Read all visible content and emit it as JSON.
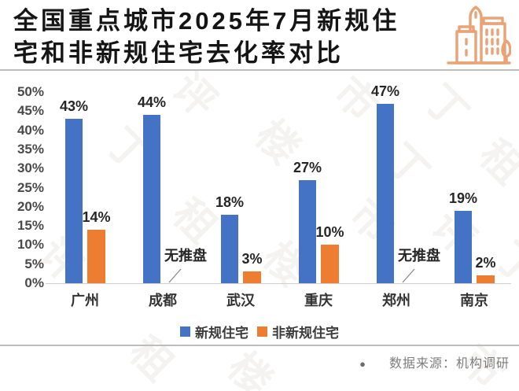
{
  "header": {
    "title_line1": "全国重点城市2025年7月新规住",
    "title_line2": "宅和非新规住宅去化率对比"
  },
  "chart_data": {
    "type": "bar",
    "title": "全国重点城市2025年7月新规住宅和非新规住宅去化率对比",
    "categories": [
      "广州",
      "成都",
      "武汉",
      "重庆",
      "郑州",
      "南京"
    ],
    "series": [
      {
        "name": "新规住宅",
        "color": "#4472C4",
        "values": [
          43,
          44,
          18,
          27,
          47,
          19
        ],
        "labels": [
          "43%",
          "44%",
          "18%",
          "27%",
          "47%",
          "19%"
        ]
      },
      {
        "name": "非新规住宅",
        "color": "#ED7D31",
        "values": [
          14,
          null,
          3,
          10,
          null,
          2
        ],
        "labels": [
          "14%",
          "无推盘",
          "3%",
          "10%",
          "无推盘",
          "2%"
        ]
      }
    ],
    "no_data_annotation": "无推盘",
    "ylim": [
      0,
      50
    ],
    "yticks": [
      {
        "value": 50,
        "label": "50%"
      },
      {
        "value": 45,
        "label": "45%"
      },
      {
        "value": 40,
        "label": "40%"
      },
      {
        "value": 35,
        "label": "35%"
      },
      {
        "value": 30,
        "label": "30%"
      },
      {
        "value": 25,
        "label": "25%"
      },
      {
        "value": 20,
        "label": "20%"
      },
      {
        "value": 15,
        "label": "15%"
      },
      {
        "value": 10,
        "label": "10%"
      },
      {
        "value": 5,
        "label": "5%"
      },
      {
        "value": 0,
        "label": "0%"
      }
    ],
    "grid": false,
    "legend_position": "bottom"
  },
  "legend": {
    "items": [
      {
        "label": "新规住宅",
        "color": "#4472C4"
      },
      {
        "label": "非新规住宅",
        "color": "#ED7D31"
      }
    ]
  },
  "footer": {
    "bullet": "●",
    "source": "数据来源：机构调研"
  },
  "icons": {
    "header_icon": "city-buildings-icon"
  },
  "colors": {
    "series_blue": "#4472C4",
    "series_orange": "#ED7D31",
    "icon_orange": "#E9A376",
    "axis_text": "#4a4a4a",
    "source_text": "#7d7d7d"
  },
  "watermark_chars": [
    "丁",
    "租",
    "楼",
    "市",
    "评"
  ]
}
